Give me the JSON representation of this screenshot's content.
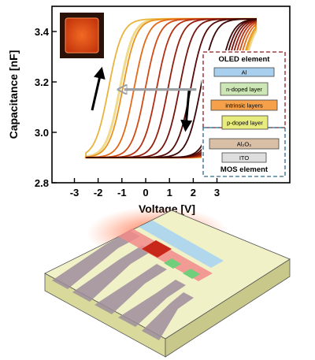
{
  "chart_data": {
    "type": "line",
    "title": "",
    "xlabel": "Voltage [V]",
    "ylabel": "Capacitance [nF]",
    "xlim": [
      -4.2,
      4.2
    ],
    "ylim": [
      2.8,
      3.5
    ],
    "xticks": [
      "-3",
      "-2",
      "-1",
      "0",
      "1",
      "2",
      "3"
    ],
    "yticks": [
      "2.8",
      "3.0",
      "3.2",
      "3.4"
    ],
    "grid": false,
    "legend": "none",
    "curves_description_values": {
      "c_low": 2.9,
      "c_high": 3.45,
      "sweep_range": [
        -3,
        3
      ]
    },
    "series": [
      {
        "up_threshold": -1.8,
        "down_threshold": 2.45,
        "color": "#f0d98a"
      },
      {
        "up_threshold": -2.2,
        "down_threshold": 2.4,
        "color": "#e9b43e"
      },
      {
        "up_threshold": -1.7,
        "down_threshold": 2.35,
        "color": "#e89420"
      },
      {
        "up_threshold": -1.3,
        "down_threshold": 2.25,
        "color": "#e46a18"
      },
      {
        "up_threshold": -0.9,
        "down_threshold": 2.15,
        "color": "#d14b14"
      },
      {
        "up_threshold": -0.5,
        "down_threshold": 2.05,
        "color": "#b53012"
      },
      {
        "up_threshold": -0.1,
        "down_threshold": 1.95,
        "color": "#952010"
      },
      {
        "up_threshold": 0.3,
        "down_threshold": 1.85,
        "color": "#76140c"
      },
      {
        "up_threshold": 0.7,
        "down_threshold": 1.75,
        "color": "#560b08"
      },
      {
        "up_threshold": 1.05,
        "down_threshold": 1.65,
        "color": "#3b0605"
      }
    ],
    "annotations": {
      "big_arrow_from_v": 0.9,
      "big_arrow_to_v": -1.65,
      "big_arrow_c": 3.17
    }
  },
  "stack": {
    "oled_label": "OLED element",
    "mos_label": "MOS element",
    "layers": [
      {
        "label": "Al",
        "color": "#a9cfee"
      },
      {
        "label": "n-doped layer",
        "color": "#cde6b5"
      },
      {
        "label": "intrinsic layers",
        "color": "#f6a14a"
      },
      {
        "label": "p-doped layer",
        "color": "#e8ec7c"
      },
      {
        "label": "Al₂O₃",
        "color": "#d8bfa6"
      },
      {
        "label": "ITO",
        "color": "#dedede"
      }
    ],
    "oled_color": "#8b1f1f",
    "mos_color": "#2a6b8f"
  },
  "colors": {
    "plot_frame": "#000000",
    "device_top": "#f1f1c8",
    "device_side": "#d9d99c",
    "pad_color": "#9e8e9c",
    "inset_border": "#2a1208",
    "inset_fill": "#e04a12"
  }
}
